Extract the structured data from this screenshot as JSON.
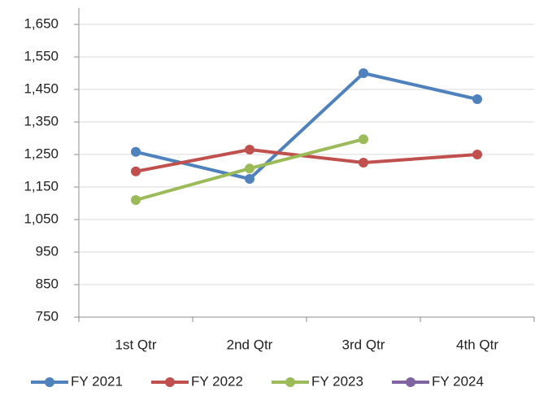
{
  "chart_data": {
    "type": "line",
    "categories": [
      "1st Qtr",
      "2nd Qtr",
      "3rd Qtr",
      "4th Qtr"
    ],
    "series": [
      {
        "name": "FY 2021",
        "color": "#4f81bd",
        "values": [
          1258,
          1175,
          1500,
          1420
        ]
      },
      {
        "name": "FY 2022",
        "color": "#c0504d",
        "values": [
          1198,
          1265,
          1225,
          1250
        ]
      },
      {
        "name": "FY 2023",
        "color": "#9bbb59",
        "values": [
          1110,
          1207,
          1297,
          null
        ]
      },
      {
        "name": "FY 2024",
        "color": "#8064a2",
        "values": [
          null,
          null,
          null,
          null
        ]
      }
    ],
    "ylim": [
      750,
      1650
    ],
    "yticks": [
      750,
      850,
      950,
      {
        "value": 1050,
        "label": "1,050"
      },
      {
        "value": 1150,
        "label": "1,150"
      },
      {
        "value": 1250,
        "label": "1,250"
      },
      {
        "value": 1350,
        "label": "1,350"
      },
      {
        "value": 1450,
        "label": "1,450"
      },
      {
        "value": 1550,
        "label": "1,550"
      },
      {
        "value": 1650,
        "label": "1,650"
      }
    ],
    "grid": true,
    "legend": "bottom"
  }
}
